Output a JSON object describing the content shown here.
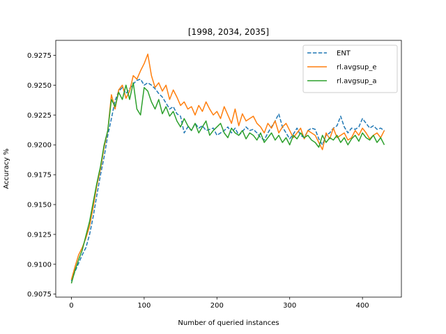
{
  "chart_data": {
    "type": "line",
    "title": "[1998, 2034, 2035]",
    "xlabel": "Number of queried instances",
    "ylabel": "Accuracy %",
    "xlim": [
      -21.5,
      453.5
    ],
    "ylim": [
      0.90725,
      0.92875
    ],
    "xticks": [
      0,
      100,
      200,
      300,
      400
    ],
    "xtick_labels": [
      "0",
      "100",
      "200",
      "300",
      "400"
    ],
    "yticks": [
      0.9075,
      0.91,
      0.9125,
      0.915,
      0.9175,
      0.92,
      0.9225,
      0.925,
      0.9275
    ],
    "ytick_labels": [
      "0.9075",
      "0.9100",
      "0.9125",
      "0.9150",
      "0.9175",
      "0.9200",
      "0.9225",
      "0.9250",
      "0.9275"
    ],
    "grid": false,
    "legend_position": "top-right",
    "series": [
      {
        "name": "ENT",
        "color": "#1f77b4",
        "dash": "dashed",
        "x": [
          0,
          5,
          10,
          15,
          20,
          25,
          30,
          35,
          40,
          45,
          50,
          55,
          60,
          65,
          70,
          75,
          80,
          85,
          90,
          95,
          100,
          105,
          110,
          115,
          120,
          125,
          130,
          135,
          140,
          145,
          150,
          155,
          160,
          165,
          170,
          175,
          180,
          185,
          190,
          195,
          200,
          205,
          210,
          215,
          220,
          225,
          230,
          235,
          240,
          245,
          250,
          255,
          260,
          265,
          270,
          275,
          280,
          285,
          290,
          295,
          300,
          305,
          310,
          315,
          320,
          325,
          330,
          335,
          340,
          345,
          350,
          355,
          360,
          365,
          370,
          375,
          380,
          385,
          390,
          395,
          400,
          405,
          410,
          415,
          420,
          425,
          430
        ],
        "y": [
          0.9086,
          0.9094,
          0.9101,
          0.9108,
          0.9114,
          0.9125,
          0.914,
          0.9158,
          0.9175,
          0.919,
          0.9208,
          0.9222,
          0.9237,
          0.9245,
          0.9248,
          0.9243,
          0.9247,
          0.9251,
          0.9254,
          0.9255,
          0.925,
          0.9252,
          0.925,
          0.9247,
          0.9243,
          0.924,
          0.9235,
          0.923,
          0.9232,
          0.9226,
          0.9224,
          0.921,
          0.9215,
          0.9212,
          0.9218,
          0.9214,
          0.9216,
          0.9212,
          0.9213,
          0.9214,
          0.9208,
          0.921,
          0.9212,
          0.9215,
          0.921,
          0.9214,
          0.9208,
          0.9211,
          0.9215,
          0.9212,
          0.9213,
          0.921,
          0.9206,
          0.9204,
          0.921,
          0.9215,
          0.922,
          0.9226,
          0.9215,
          0.921,
          0.9205,
          0.9209,
          0.9214,
          0.9208,
          0.9206,
          0.9212,
          0.9214,
          0.9213,
          0.9205,
          0.92,
          0.9208,
          0.921,
          0.9214,
          0.9216,
          0.9224,
          0.9215,
          0.921,
          0.9214,
          0.9213,
          0.9215,
          0.9222,
          0.9218,
          0.9214,
          0.9216,
          0.9213,
          0.9214,
          0.9212
        ]
      },
      {
        "name": "rl.avgsup_e",
        "color": "#ff7f0e",
        "dash": "solid",
        "x": [
          0,
          5,
          10,
          15,
          20,
          25,
          30,
          35,
          40,
          45,
          50,
          55,
          60,
          65,
          70,
          75,
          80,
          85,
          90,
          95,
          100,
          105,
          110,
          115,
          120,
          125,
          130,
          135,
          140,
          145,
          150,
          155,
          160,
          165,
          170,
          175,
          180,
          185,
          190,
          195,
          200,
          205,
          210,
          215,
          220,
          225,
          230,
          235,
          240,
          245,
          250,
          255,
          260,
          265,
          270,
          275,
          280,
          285,
          290,
          295,
          300,
          305,
          310,
          315,
          320,
          325,
          330,
          335,
          340,
          345,
          350,
          355,
          360,
          365,
          370,
          375,
          380,
          385,
          390,
          395,
          400,
          405,
          410,
          415,
          420,
          425,
          430
        ],
        "y": [
          0.9087,
          0.9098,
          0.9108,
          0.9114,
          0.9122,
          0.9132,
          0.9148,
          0.9166,
          0.918,
          0.9198,
          0.9212,
          0.9242,
          0.923,
          0.9246,
          0.925,
          0.9239,
          0.9245,
          0.9258,
          0.9255,
          0.9262,
          0.9268,
          0.9276,
          0.9258,
          0.9248,
          0.9252,
          0.9245,
          0.925,
          0.9238,
          0.9246,
          0.924,
          0.9233,
          0.9236,
          0.923,
          0.9232,
          0.9225,
          0.9233,
          0.9228,
          0.9236,
          0.923,
          0.9225,
          0.9228,
          0.9222,
          0.9232,
          0.9225,
          0.9218,
          0.923,
          0.9216,
          0.9226,
          0.922,
          0.9222,
          0.9224,
          0.9218,
          0.9215,
          0.921,
          0.9218,
          0.9214,
          0.922,
          0.921,
          0.9215,
          0.9218,
          0.9212,
          0.9206,
          0.921,
          0.9214,
          0.9205,
          0.9212,
          0.921,
          0.9208,
          0.9202,
          0.9196,
          0.921,
          0.9205,
          0.9214,
          0.9206,
          0.9208,
          0.921,
          0.9204,
          0.9206,
          0.9212,
          0.9208,
          0.9214,
          0.921,
          0.9205,
          0.9208,
          0.921,
          0.9206,
          0.9212
        ]
      },
      {
        "name": "rl.avgsup_a",
        "color": "#2ca02c",
        "dash": "solid",
        "x": [
          0,
          5,
          10,
          15,
          20,
          25,
          30,
          35,
          40,
          45,
          50,
          55,
          60,
          65,
          70,
          75,
          80,
          85,
          90,
          95,
          100,
          105,
          110,
          115,
          120,
          125,
          130,
          135,
          140,
          145,
          150,
          155,
          160,
          165,
          170,
          175,
          180,
          185,
          190,
          195,
          200,
          205,
          210,
          215,
          220,
          225,
          230,
          235,
          240,
          245,
          250,
          255,
          260,
          265,
          270,
          275,
          280,
          285,
          290,
          295,
          300,
          305,
          310,
          315,
          320,
          325,
          330,
          335,
          340,
          345,
          350,
          355,
          360,
          365,
          370,
          375,
          380,
          385,
          390,
          395,
          400,
          405,
          410,
          415,
          420,
          425,
          430
        ],
        "y": [
          0.9084,
          0.9095,
          0.9104,
          0.9112,
          0.9124,
          0.9136,
          0.9152,
          0.9168,
          0.9182,
          0.92,
          0.9212,
          0.9238,
          0.9232,
          0.9244,
          0.9238,
          0.925,
          0.9238,
          0.9252,
          0.923,
          0.9225,
          0.9248,
          0.9245,
          0.9236,
          0.923,
          0.9238,
          0.9226,
          0.9232,
          0.9224,
          0.9228,
          0.922,
          0.9215,
          0.9222,
          0.9216,
          0.9212,
          0.9218,
          0.921,
          0.9215,
          0.922,
          0.9208,
          0.9212,
          0.9215,
          0.9218,
          0.921,
          0.9206,
          0.9214,
          0.921,
          0.9208,
          0.9212,
          0.9205,
          0.921,
          0.9208,
          0.9204,
          0.921,
          0.9202,
          0.9206,
          0.921,
          0.9204,
          0.9208,
          0.9202,
          0.9206,
          0.92,
          0.9208,
          0.9205,
          0.921,
          0.9206,
          0.9208,
          0.9204,
          0.9202,
          0.9198,
          0.9208,
          0.9202,
          0.9206,
          0.9204,
          0.9208,
          0.9202,
          0.9206,
          0.92,
          0.9205,
          0.9208,
          0.9203,
          0.921,
          0.9206,
          0.9204,
          0.9208,
          0.9202,
          0.9206,
          0.92
        ]
      }
    ]
  }
}
